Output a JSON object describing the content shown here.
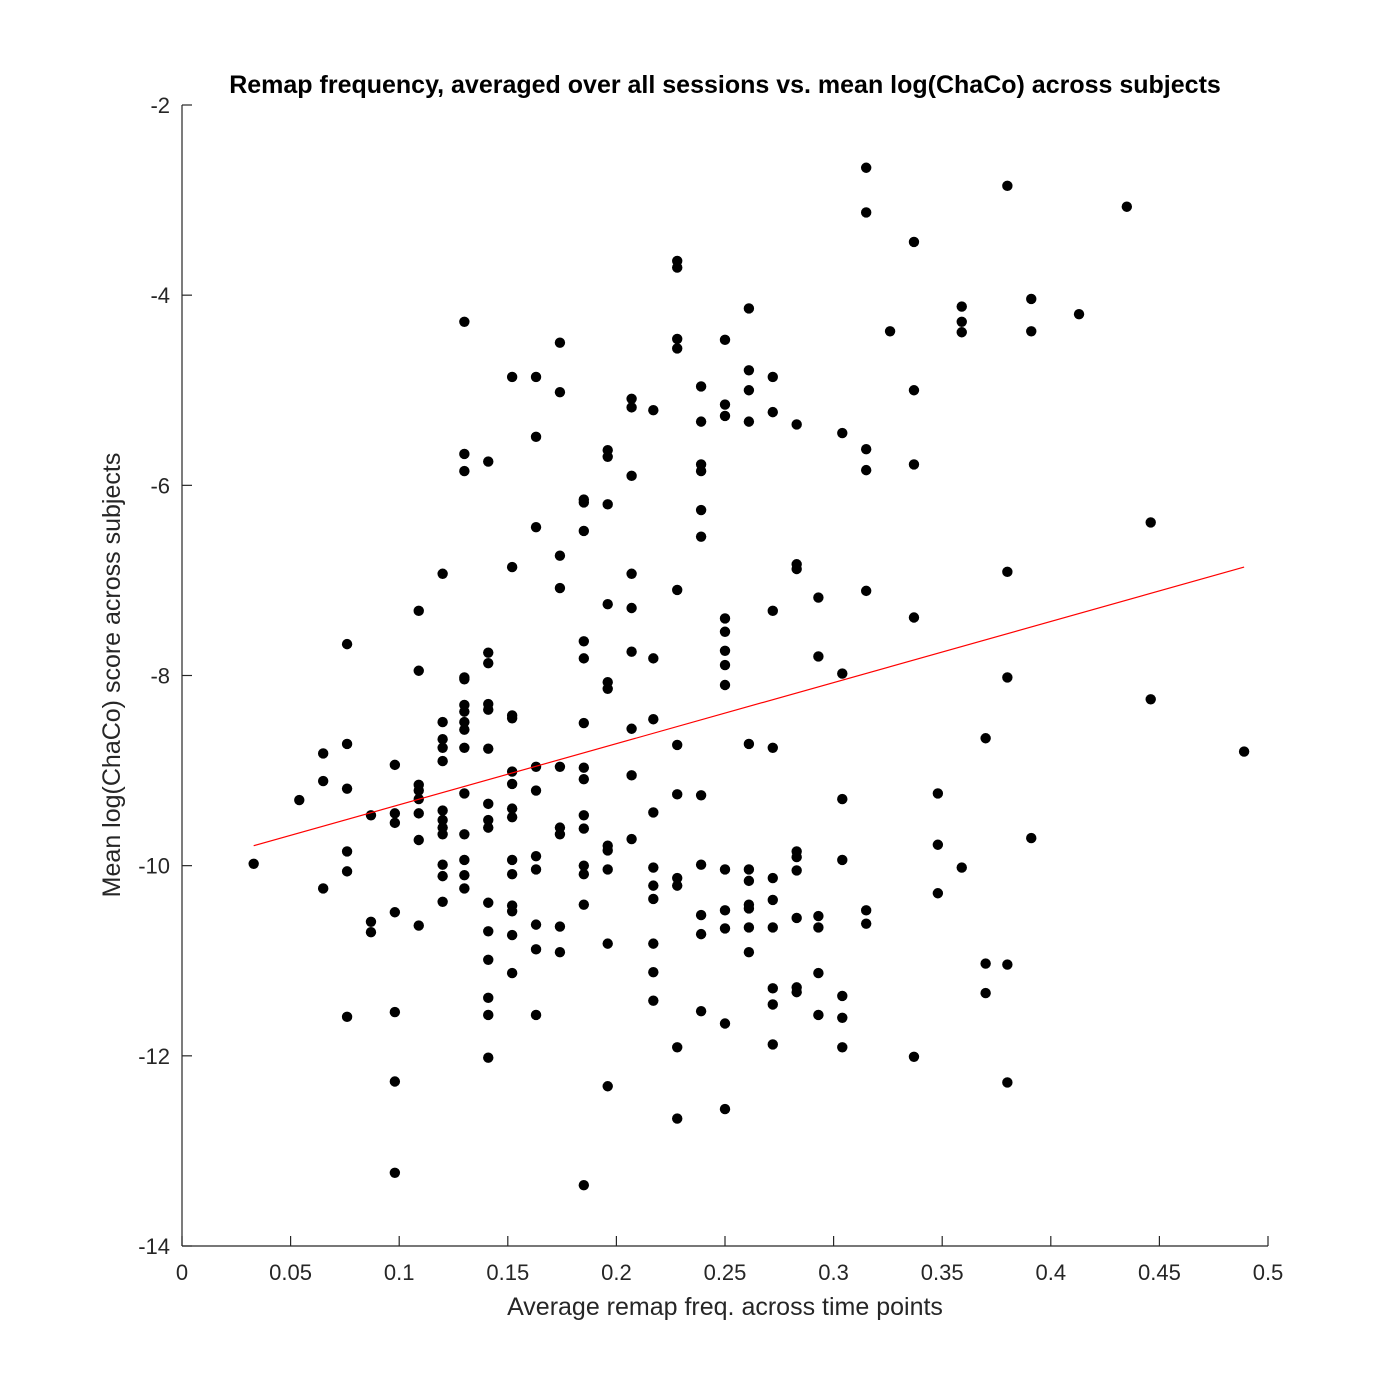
{
  "chart_data": {
    "type": "scatter",
    "title": "Remap frequency, averaged over all sessions vs. mean log(ChaCo) across subjects",
    "xlabel": "Average remap freq. across time points",
    "ylabel": "Mean log(ChaCo) score across subjects",
    "xlim": [
      0,
      0.5
    ],
    "ylim": [
      -14,
      -2
    ],
    "xticks": [
      0,
      0.05,
      0.1,
      0.15,
      0.2,
      0.25,
      0.3,
      0.35,
      0.4,
      0.45,
      0.5
    ],
    "xtick_labels": [
      "0",
      "0.05",
      "0.1",
      "0.15",
      "0.2",
      "0.25",
      "0.3",
      "0.35",
      "0.4",
      "0.45",
      "0.5"
    ],
    "yticks": [
      -14,
      -12,
      -10,
      -8,
      -6,
      -4,
      -2
    ],
    "ytick_labels": [
      "-14",
      "-12",
      "-10",
      "-8",
      "-6",
      "-4",
      "-2"
    ],
    "grid": false,
    "colors": {
      "points": "#000000",
      "fit_line": "#ff0000",
      "axes": "#262626"
    },
    "fit_line": {
      "x": [
        0.033,
        0.489
      ],
      "y": [
        -9.79,
        -6.86
      ]
    },
    "points": [
      [
        0.033,
        -9.98
      ],
      [
        0.054,
        -9.31
      ],
      [
        0.065,
        -8.82
      ],
      [
        0.065,
        -9.11
      ],
      [
        0.065,
        -10.24
      ],
      [
        0.076,
        -7.67
      ],
      [
        0.076,
        -8.72
      ],
      [
        0.076,
        -9.19
      ],
      [
        0.076,
        -9.85
      ],
      [
        0.076,
        -10.06
      ],
      [
        0.076,
        -11.59
      ],
      [
        0.087,
        -9.47
      ],
      [
        0.087,
        -10.59
      ],
      [
        0.087,
        -10.7
      ],
      [
        0.098,
        -8.94
      ],
      [
        0.098,
        -9.45
      ],
      [
        0.098,
        -9.55
      ],
      [
        0.098,
        -10.49
      ],
      [
        0.098,
        -11.54
      ],
      [
        0.098,
        -12.27
      ],
      [
        0.098,
        -13.23
      ],
      [
        0.109,
        -7.32
      ],
      [
        0.109,
        -7.95
      ],
      [
        0.109,
        -9.15
      ],
      [
        0.109,
        -9.21
      ],
      [
        0.109,
        -9.3
      ],
      [
        0.109,
        -9.45
      ],
      [
        0.109,
        -9.73
      ],
      [
        0.109,
        -10.63
      ],
      [
        0.12,
        -6.93
      ],
      [
        0.12,
        -8.49
      ],
      [
        0.12,
        -8.67
      ],
      [
        0.12,
        -8.76
      ],
      [
        0.12,
        -8.9
      ],
      [
        0.12,
        -9.42
      ],
      [
        0.12,
        -9.52
      ],
      [
        0.12,
        -9.6
      ],
      [
        0.12,
        -9.67
      ],
      [
        0.12,
        -9.99
      ],
      [
        0.12,
        -10.11
      ],
      [
        0.12,
        -10.38
      ],
      [
        0.13,
        -4.28
      ],
      [
        0.13,
        -5.67
      ],
      [
        0.13,
        -5.85
      ],
      [
        0.13,
        -8.02
      ],
      [
        0.13,
        -8.04
      ],
      [
        0.13,
        -8.31
      ],
      [
        0.13,
        -8.38
      ],
      [
        0.13,
        -8.49
      ],
      [
        0.13,
        -8.57
      ],
      [
        0.13,
        -8.76
      ],
      [
        0.13,
        -9.24
      ],
      [
        0.13,
        -9.67
      ],
      [
        0.13,
        -9.94
      ],
      [
        0.13,
        -10.1
      ],
      [
        0.13,
        -10.24
      ],
      [
        0.141,
        -5.75
      ],
      [
        0.141,
        -7.76
      ],
      [
        0.141,
        -7.87
      ],
      [
        0.141,
        -8.3
      ],
      [
        0.141,
        -8.36
      ],
      [
        0.141,
        -8.77
      ],
      [
        0.141,
        -9.35
      ],
      [
        0.141,
        -9.52
      ],
      [
        0.141,
        -9.6
      ],
      [
        0.141,
        -10.39
      ],
      [
        0.141,
        -10.69
      ],
      [
        0.141,
        -10.99
      ],
      [
        0.141,
        -11.39
      ],
      [
        0.141,
        -11.57
      ],
      [
        0.141,
        -12.02
      ],
      [
        0.152,
        -4.86
      ],
      [
        0.152,
        -6.86
      ],
      [
        0.152,
        -8.42
      ],
      [
        0.152,
        -8.45
      ],
      [
        0.152,
        -9.01
      ],
      [
        0.152,
        -9.14
      ],
      [
        0.152,
        -9.4
      ],
      [
        0.152,
        -9.49
      ],
      [
        0.152,
        -9.94
      ],
      [
        0.152,
        -10.09
      ],
      [
        0.152,
        -10.42
      ],
      [
        0.152,
        -10.48
      ],
      [
        0.152,
        -10.73
      ],
      [
        0.152,
        -11.13
      ],
      [
        0.163,
        -4.86
      ],
      [
        0.163,
        -5.49
      ],
      [
        0.163,
        -6.44
      ],
      [
        0.163,
        -8.96
      ],
      [
        0.163,
        -9.21
      ],
      [
        0.163,
        -9.9
      ],
      [
        0.163,
        -10.04
      ],
      [
        0.163,
        -10.62
      ],
      [
        0.163,
        -10.88
      ],
      [
        0.163,
        -11.57
      ],
      [
        0.174,
        -4.5
      ],
      [
        0.174,
        -5.02
      ],
      [
        0.174,
        -6.74
      ],
      [
        0.174,
        -7.08
      ],
      [
        0.174,
        -8.96
      ],
      [
        0.174,
        -9.6
      ],
      [
        0.174,
        -9.67
      ],
      [
        0.174,
        -10.64
      ],
      [
        0.174,
        -10.91
      ],
      [
        0.185,
        -6.15
      ],
      [
        0.185,
        -6.18
      ],
      [
        0.185,
        -6.48
      ],
      [
        0.185,
        -7.64
      ],
      [
        0.185,
        -7.82
      ],
      [
        0.185,
        -8.5
      ],
      [
        0.185,
        -8.97
      ],
      [
        0.185,
        -9.09
      ],
      [
        0.185,
        -9.47
      ],
      [
        0.185,
        -9.61
      ],
      [
        0.185,
        -10.0
      ],
      [
        0.185,
        -10.09
      ],
      [
        0.185,
        -10.41
      ],
      [
        0.185,
        -13.36
      ],
      [
        0.196,
        -5.63
      ],
      [
        0.196,
        -5.7
      ],
      [
        0.196,
        -6.2
      ],
      [
        0.196,
        -7.25
      ],
      [
        0.196,
        -8.07
      ],
      [
        0.196,
        -8.14
      ],
      [
        0.196,
        -9.79
      ],
      [
        0.196,
        -9.84
      ],
      [
        0.196,
        -10.04
      ],
      [
        0.196,
        -10.82
      ],
      [
        0.196,
        -12.32
      ],
      [
        0.207,
        -5.09
      ],
      [
        0.207,
        -5.18
      ],
      [
        0.207,
        -5.9
      ],
      [
        0.207,
        -6.93
      ],
      [
        0.207,
        -7.29
      ],
      [
        0.207,
        -7.75
      ],
      [
        0.207,
        -8.56
      ],
      [
        0.207,
        -9.05
      ],
      [
        0.207,
        -9.72
      ],
      [
        0.217,
        -5.21
      ],
      [
        0.217,
        -7.82
      ],
      [
        0.217,
        -8.46
      ],
      [
        0.217,
        -9.44
      ],
      [
        0.217,
        -10.02
      ],
      [
        0.217,
        -10.21
      ],
      [
        0.217,
        -10.35
      ],
      [
        0.217,
        -10.82
      ],
      [
        0.217,
        -11.12
      ],
      [
        0.217,
        -11.42
      ],
      [
        0.228,
        -3.64
      ],
      [
        0.228,
        -3.71
      ],
      [
        0.228,
        -4.46
      ],
      [
        0.228,
        -4.56
      ],
      [
        0.228,
        -7.1
      ],
      [
        0.228,
        -8.73
      ],
      [
        0.228,
        -9.25
      ],
      [
        0.228,
        -10.13
      ],
      [
        0.228,
        -10.21
      ],
      [
        0.228,
        -11.91
      ],
      [
        0.228,
        -12.66
      ],
      [
        0.239,
        -4.96
      ],
      [
        0.239,
        -5.33
      ],
      [
        0.239,
        -5.78
      ],
      [
        0.239,
        -5.85
      ],
      [
        0.239,
        -6.26
      ],
      [
        0.239,
        -6.54
      ],
      [
        0.239,
        -9.26
      ],
      [
        0.239,
        -9.99
      ],
      [
        0.239,
        -10.52
      ],
      [
        0.239,
        -10.72
      ],
      [
        0.239,
        -11.53
      ],
      [
        0.25,
        -4.47
      ],
      [
        0.25,
        -5.15
      ],
      [
        0.25,
        -5.27
      ],
      [
        0.25,
        -7.4
      ],
      [
        0.25,
        -7.54
      ],
      [
        0.25,
        -7.74
      ],
      [
        0.25,
        -7.89
      ],
      [
        0.25,
        -8.1
      ],
      [
        0.25,
        -10.04
      ],
      [
        0.25,
        -10.47
      ],
      [
        0.25,
        -10.66
      ],
      [
        0.25,
        -11.66
      ],
      [
        0.25,
        -12.56
      ],
      [
        0.261,
        -4.14
      ],
      [
        0.261,
        -4.79
      ],
      [
        0.261,
        -5.0
      ],
      [
        0.261,
        -5.33
      ],
      [
        0.261,
        -8.72
      ],
      [
        0.261,
        -10.04
      ],
      [
        0.261,
        -10.16
      ],
      [
        0.261,
        -10.41
      ],
      [
        0.261,
        -10.45
      ],
      [
        0.261,
        -10.65
      ],
      [
        0.261,
        -10.91
      ],
      [
        0.272,
        -4.86
      ],
      [
        0.272,
        -5.23
      ],
      [
        0.272,
        -7.32
      ],
      [
        0.272,
        -8.76
      ],
      [
        0.272,
        -10.13
      ],
      [
        0.272,
        -10.36
      ],
      [
        0.272,
        -10.65
      ],
      [
        0.272,
        -11.29
      ],
      [
        0.272,
        -11.46
      ],
      [
        0.272,
        -11.88
      ],
      [
        0.283,
        -5.36
      ],
      [
        0.283,
        -6.83
      ],
      [
        0.283,
        -6.88
      ],
      [
        0.283,
        -9.85
      ],
      [
        0.283,
        -9.91
      ],
      [
        0.283,
        -10.05
      ],
      [
        0.283,
        -10.55
      ],
      [
        0.283,
        -11.28
      ],
      [
        0.283,
        -11.33
      ],
      [
        0.293,
        -7.18
      ],
      [
        0.293,
        -7.8
      ],
      [
        0.293,
        -10.53
      ],
      [
        0.293,
        -10.65
      ],
      [
        0.293,
        -11.13
      ],
      [
        0.293,
        -11.57
      ],
      [
        0.304,
        -5.45
      ],
      [
        0.304,
        -7.98
      ],
      [
        0.304,
        -9.3
      ],
      [
        0.304,
        -9.94
      ],
      [
        0.304,
        -11.37
      ],
      [
        0.304,
        -11.6
      ],
      [
        0.304,
        -11.91
      ],
      [
        0.315,
        -2.66
      ],
      [
        0.315,
        -3.13
      ],
      [
        0.315,
        -5.62
      ],
      [
        0.315,
        -5.84
      ],
      [
        0.315,
        -7.11
      ],
      [
        0.315,
        -10.47
      ],
      [
        0.315,
        -10.61
      ],
      [
        0.326,
        -4.38
      ],
      [
        0.337,
        -3.44
      ],
      [
        0.337,
        -5.0
      ],
      [
        0.337,
        -5.78
      ],
      [
        0.337,
        -7.39
      ],
      [
        0.337,
        -12.01
      ],
      [
        0.348,
        -9.24
      ],
      [
        0.348,
        -9.78
      ],
      [
        0.348,
        -10.29
      ],
      [
        0.359,
        -4.12
      ],
      [
        0.359,
        -4.28
      ],
      [
        0.359,
        -4.39
      ],
      [
        0.359,
        -10.02
      ],
      [
        0.37,
        -8.66
      ],
      [
        0.37,
        -11.03
      ],
      [
        0.37,
        -11.34
      ],
      [
        0.38,
        -2.85
      ],
      [
        0.38,
        -6.91
      ],
      [
        0.38,
        -8.02
      ],
      [
        0.38,
        -11.04
      ],
      [
        0.38,
        -12.28
      ],
      [
        0.391,
        -4.04
      ],
      [
        0.391,
        -4.38
      ],
      [
        0.391,
        -9.71
      ],
      [
        0.413,
        -4.2
      ],
      [
        0.435,
        -3.07
      ],
      [
        0.446,
        -6.39
      ],
      [
        0.446,
        -8.25
      ],
      [
        0.489,
        -8.8
      ]
    ]
  }
}
